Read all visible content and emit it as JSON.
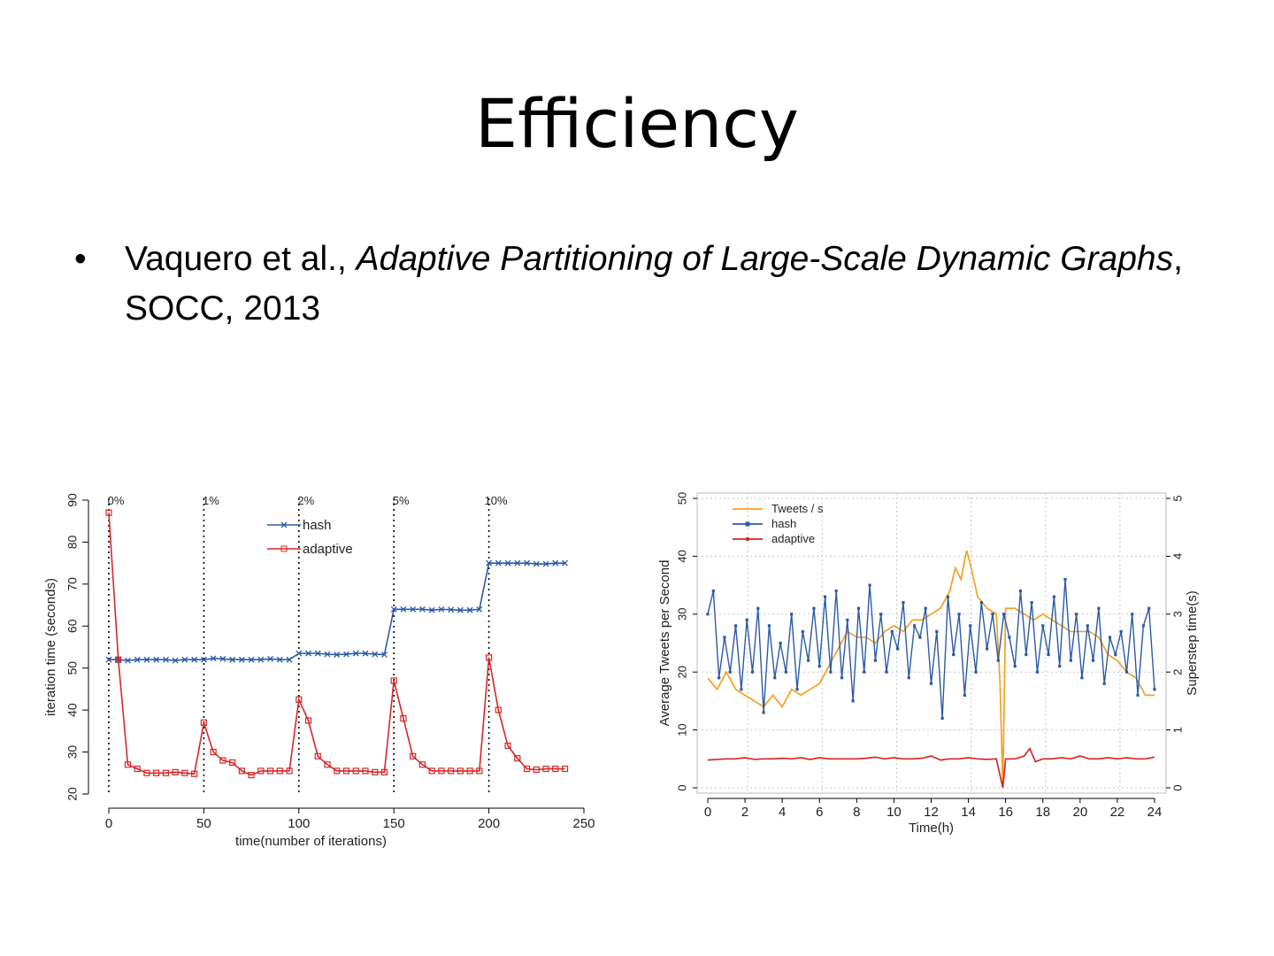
{
  "slide": {
    "title": "Efficiency",
    "bullet_symbol": "•",
    "citation": {
      "authors": "Vaquero et al., ",
      "paper_title": "Adaptive Partitioning of Large-Scale Dynamic Graphs",
      "venue": ", SOCC, 2013"
    }
  },
  "colors": {
    "hash": "#2b5aa8",
    "adaptive": "#d62728",
    "tweets": "#f5a023",
    "grid": "#c8c8c8"
  },
  "chart_data": [
    {
      "type": "line",
      "title": "",
      "xlabel": "time(number of iterations)",
      "ylabel": "iteration time (seconds)",
      "xlim": [
        0,
        250
      ],
      "ylim": [
        20,
        90
      ],
      "xticks": [
        0,
        50,
        100,
        150,
        200,
        250
      ],
      "yticks": [
        20,
        30,
        40,
        50,
        60,
        70,
        80,
        90
      ],
      "annotations": [
        {
          "x": 0,
          "label": "0%"
        },
        {
          "x": 50,
          "label": "1%"
        },
        {
          "x": 100,
          "label": "2%"
        },
        {
          "x": 150,
          "label": "5%"
        },
        {
          "x": 200,
          "label": "10%"
        }
      ],
      "legend": "top-center",
      "series": [
        {
          "name": "hash",
          "marker": "x",
          "x": [
            0,
            5,
            10,
            15,
            20,
            25,
            30,
            35,
            40,
            45,
            50,
            55,
            60,
            65,
            70,
            75,
            80,
            85,
            90,
            95,
            100,
            105,
            110,
            115,
            120,
            125,
            130,
            135,
            140,
            145,
            150,
            155,
            160,
            165,
            170,
            175,
            180,
            185,
            190,
            195,
            200,
            205,
            210,
            215,
            220,
            225,
            230,
            235,
            240
          ],
          "y": [
            52,
            52,
            51.8,
            52,
            52,
            52,
            52,
            51.8,
            52,
            52,
            52,
            52.3,
            52.2,
            52,
            52,
            52,
            52,
            52.2,
            52,
            52,
            53.5,
            53.5,
            53.5,
            53.3,
            53.2,
            53.3,
            53.5,
            53.5,
            53.3,
            53.2,
            64,
            64,
            64,
            64,
            63.8,
            64,
            63.9,
            63.8,
            63.8,
            64,
            75,
            75,
            75,
            75,
            75,
            74.8,
            74.8,
            75,
            75
          ]
        },
        {
          "name": "adaptive",
          "marker": "square",
          "x": [
            0,
            5,
            10,
            15,
            20,
            25,
            30,
            35,
            40,
            45,
            50,
            55,
            60,
            65,
            70,
            75,
            80,
            85,
            90,
            95,
            100,
            105,
            110,
            115,
            120,
            125,
            130,
            135,
            140,
            145,
            150,
            155,
            160,
            165,
            170,
            175,
            180,
            185,
            190,
            195,
            200,
            205,
            210,
            215,
            220,
            225,
            230,
            235,
            240
          ],
          "y": [
            87,
            52,
            27,
            26,
            25,
            25,
            25,
            25.2,
            25,
            24.8,
            37,
            30,
            28,
            27.5,
            25.5,
            24.5,
            25.5,
            25.5,
            25.5,
            25.5,
            42.5,
            37.5,
            29,
            27,
            25.5,
            25.5,
            25.5,
            25.5,
            25.2,
            25.2,
            47,
            38,
            29,
            27,
            25.5,
            25.5,
            25.5,
            25.5,
            25.5,
            25.5,
            52.5,
            40,
            31.5,
            28.5,
            26,
            25.8,
            26,
            26,
            26
          ]
        }
      ]
    },
    {
      "type": "line",
      "title": "",
      "xlabel": "Time(h)",
      "ylabel": "Average Tweets per Second",
      "y2label": "Superstep time(s)",
      "xlim": [
        0,
        24
      ],
      "ylim": [
        0,
        50
      ],
      "y2lim": [
        0,
        5
      ],
      "xticks": [
        0,
        2,
        4,
        6,
        8,
        10,
        12,
        14,
        16,
        18,
        20,
        22,
        24
      ],
      "yticks": [
        0,
        10,
        20,
        30,
        40,
        50
      ],
      "y2ticks": [
        0,
        1,
        2,
        3,
        4,
        5
      ],
      "grid": true,
      "legend": "top-left",
      "series": [
        {
          "name": "Tweets / s",
          "axis": "left",
          "x": [
            0,
            0.5,
            1,
            1.5,
            2,
            2.5,
            3,
            3.5,
            4,
            4.5,
            5,
            5.5,
            6,
            6.5,
            7,
            7.5,
            8,
            8.5,
            9,
            9.5,
            10,
            10.5,
            11,
            11.5,
            12,
            12.5,
            13,
            13.3,
            13.6,
            13.9,
            14,
            14.5,
            15,
            15.5,
            15.7,
            15.85,
            16,
            16.5,
            17,
            17.5,
            18,
            18.5,
            19,
            19.5,
            20,
            20.5,
            21,
            21.5,
            22,
            22.5,
            23,
            23.5,
            24
          ],
          "y": [
            19,
            17,
            20,
            17,
            16,
            15,
            14,
            16,
            14,
            17,
            16,
            17,
            18,
            21,
            24,
            27,
            26,
            26,
            25,
            27,
            28,
            27,
            29,
            29,
            30,
            31,
            34,
            38,
            36,
            41,
            40,
            33,
            31,
            30,
            18,
            0,
            31,
            31,
            30,
            29,
            30,
            29,
            28,
            27,
            27,
            27,
            26,
            23,
            22,
            20,
            19,
            16,
            16
          ]
        },
        {
          "name": "hash",
          "axis": "right",
          "x": [
            0,
            0.3,
            0.6,
            0.9,
            1.2,
            1.5,
            1.8,
            2.1,
            2.4,
            2.7,
            3,
            3.3,
            3.6,
            3.9,
            4.2,
            4.5,
            4.8,
            5.1,
            5.4,
            5.7,
            6,
            6.3,
            6.6,
            6.9,
            7.2,
            7.5,
            7.8,
            8.1,
            8.4,
            8.7,
            9,
            9.3,
            9.6,
            9.9,
            10.2,
            10.5,
            10.8,
            11.1,
            11.4,
            11.7,
            12,
            12.3,
            12.6,
            12.9,
            13.2,
            13.5,
            13.8,
            14.1,
            14.4,
            14.7,
            15,
            15.3,
            15.6,
            15.9,
            16.2,
            16.5,
            16.8,
            17.1,
            17.4,
            17.7,
            18,
            18.3,
            18.6,
            18.9,
            19.2,
            19.5,
            19.8,
            20.1,
            20.4,
            20.7,
            21,
            21.3,
            21.6,
            21.9,
            22.2,
            22.5,
            22.8,
            23.1,
            23.4,
            23.7,
            24
          ],
          "y": [
            3.0,
            3.4,
            1.9,
            2.6,
            2.0,
            2.8,
            1.7,
            2.9,
            2.0,
            3.1,
            1.3,
            2.8,
            1.9,
            2.5,
            2.0,
            3.0,
            1.7,
            2.7,
            2.2,
            3.1,
            2.1,
            3.3,
            2.0,
            3.4,
            1.9,
            2.9,
            1.5,
            3.1,
            2.0,
            3.5,
            2.2,
            3.0,
            2.0,
            2.7,
            2.4,
            3.2,
            1.9,
            2.8,
            2.6,
            3.1,
            1.8,
            2.7,
            1.2,
            3.3,
            2.3,
            3.0,
            1.6,
            2.8,
            2.0,
            3.2,
            2.4,
            3.0,
            2.2,
            3.0,
            2.6,
            2.1,
            3.4,
            2.3,
            3.2,
            2.0,
            2.8,
            2.3,
            3.3,
            2.1,
            3.6,
            2.2,
            3.0,
            1.9,
            2.8,
            2.2,
            3.1,
            1.8,
            2.6,
            2.3,
            2.7,
            2.0,
            3.0,
            1.6,
            2.8,
            3.1,
            1.7
          ]
        },
        {
          "name": "adaptive",
          "axis": "right",
          "x": [
            0,
            0.5,
            1,
            1.5,
            2,
            2.5,
            3,
            3.5,
            4,
            4.5,
            5,
            5.5,
            6,
            6.5,
            7,
            7.5,
            8,
            8.5,
            9,
            9.5,
            10,
            10.5,
            11,
            11.5,
            12,
            12.5,
            13,
            13.5,
            14,
            14.5,
            15,
            15.5,
            15.85,
            16,
            16.5,
            17,
            17.3,
            17.6,
            18,
            18.5,
            19,
            19.5,
            20,
            20.5,
            21,
            21.5,
            22,
            22.5,
            23,
            23.5,
            24
          ],
          "y": [
            0.48,
            0.49,
            0.5,
            0.5,
            0.52,
            0.49,
            0.5,
            0.5,
            0.51,
            0.5,
            0.52,
            0.49,
            0.52,
            0.5,
            0.5,
            0.5,
            0.5,
            0.51,
            0.53,
            0.5,
            0.52,
            0.5,
            0.5,
            0.51,
            0.55,
            0.48,
            0.5,
            0.5,
            0.52,
            0.5,
            0.49,
            0.5,
            0.0,
            0.5,
            0.5,
            0.55,
            0.68,
            0.45,
            0.5,
            0.5,
            0.52,
            0.5,
            0.55,
            0.5,
            0.5,
            0.52,
            0.5,
            0.52,
            0.5,
            0.5,
            0.53
          ]
        }
      ]
    }
  ]
}
